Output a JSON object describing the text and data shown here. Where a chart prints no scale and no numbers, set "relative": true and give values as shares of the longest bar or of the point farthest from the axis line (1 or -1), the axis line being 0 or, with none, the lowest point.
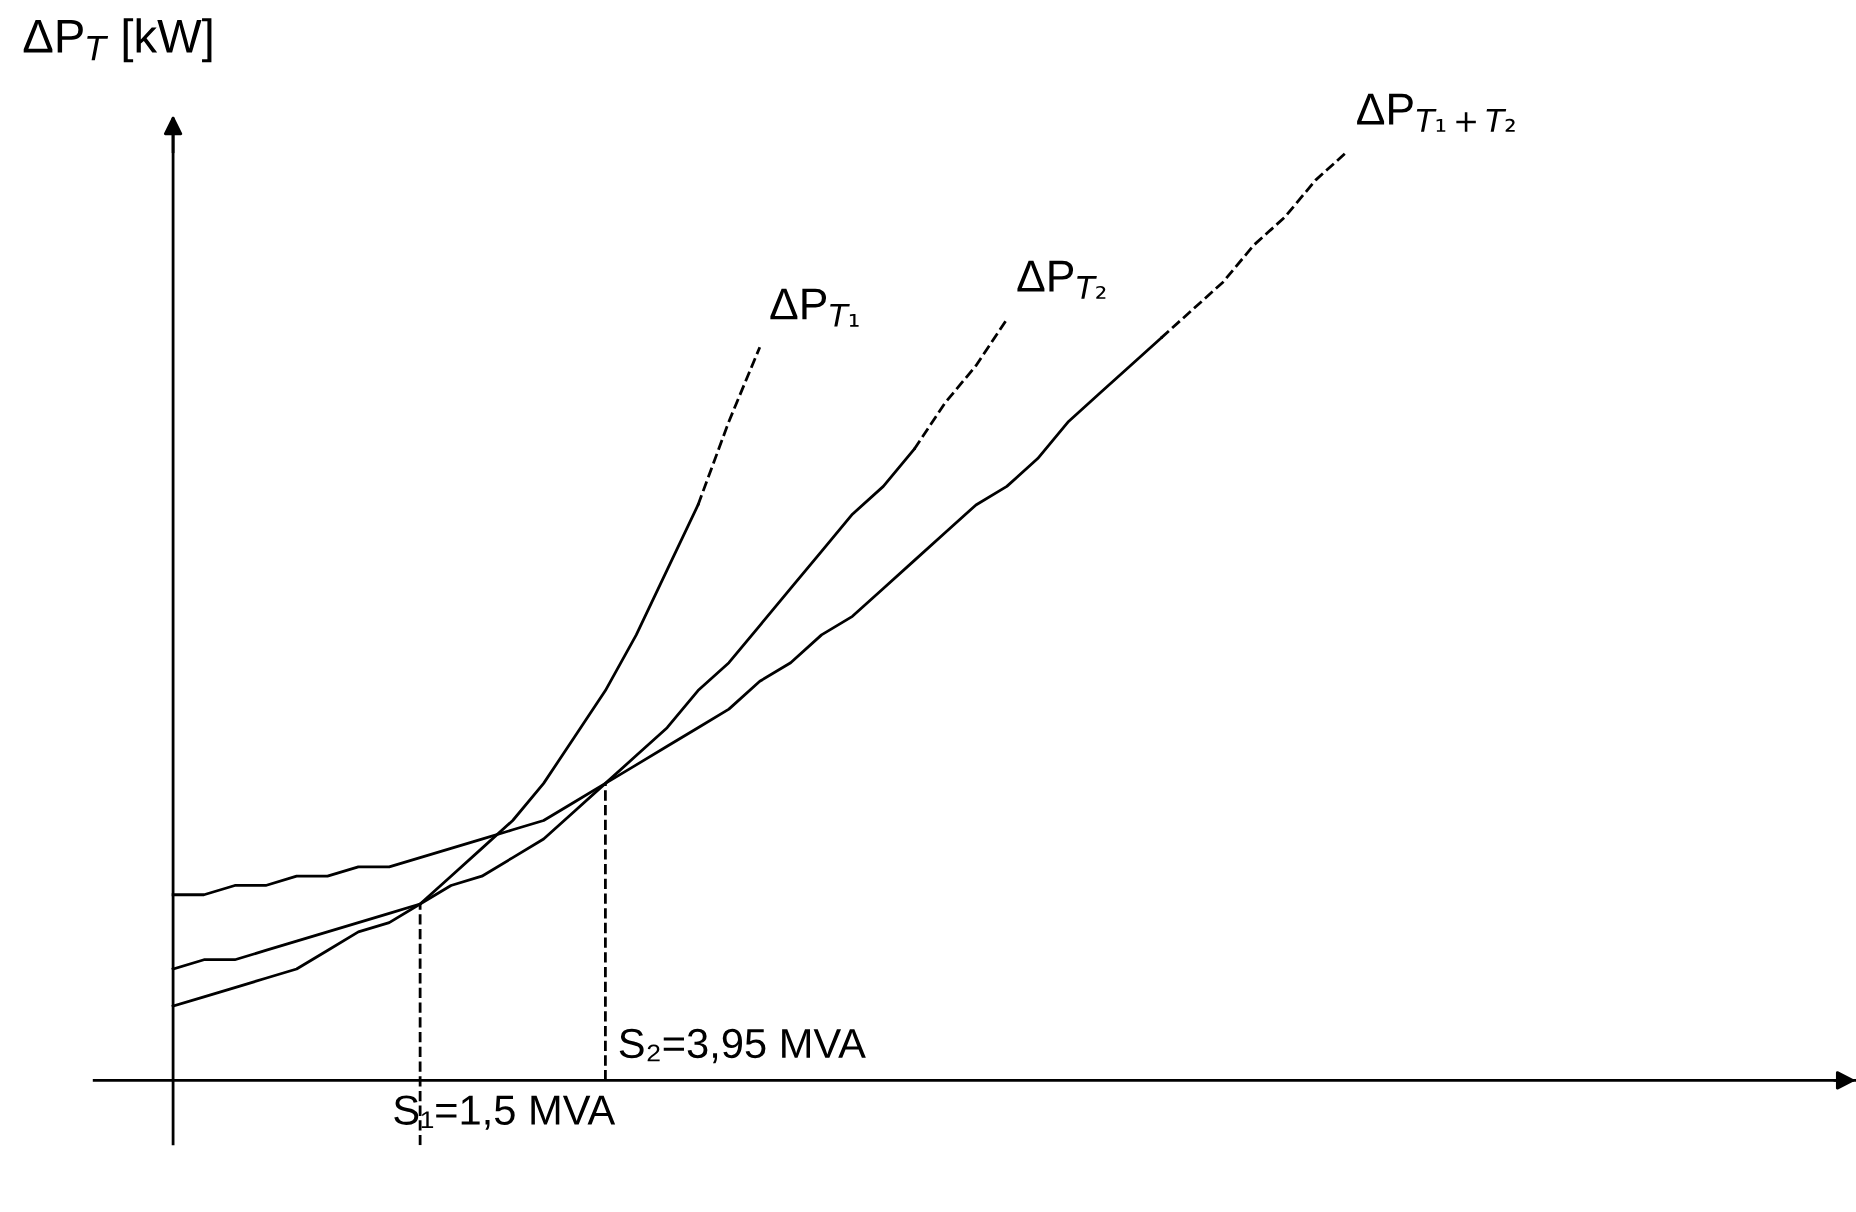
{
  "chart_data": {
    "type": "line",
    "relative": true,
    "ylabel": "ΔP$_{T}$ [kW]",
    "categories": [
      null,
      null,
      null,
      null,
      null,
      null,
      null,
      null,
      null,
      null,
      null,
      null,
      null,
      null,
      null,
      null,
      null,
      null,
      null,
      null,
      null,
      null,
      null,
      null,
      null,
      null,
      null,
      null,
      null,
      null,
      null,
      null,
      null,
      null,
      null,
      null,
      null,
      null,
      null,
      null,
      null,
      null,
      null,
      null,
      null,
      null,
      null,
      null,
      null,
      null,
      null,
      null,
      null,
      null,
      null
    ],
    "series": [
      {
        "color": "#000000",
        "line_style": "solid",
        "values": [
          0.08,
          0.09,
          0.1,
          0.11,
          0.12,
          0.14,
          0.16,
          0.17,
          0.19,
          0.22,
          0.25,
          0.28,
          0.32,
          0.37,
          0.42,
          0.48,
          0.55,
          0.62,
          null,
          null,
          null,
          null,
          null,
          null,
          null,
          null,
          null,
          null,
          null,
          null,
          null,
          null,
          null,
          null,
          null,
          null,
          null,
          null,
          null,
          null,
          null,
          null,
          null,
          null,
          null,
          null,
          null,
          null,
          null,
          null,
          null,
          null,
          null,
          null,
          null
        ]
      },
      {
        "name": "ΔP$_{T₁}$",
        "color": "#000000",
        "line_style": "dashed",
        "values": [
          null,
          null,
          null,
          null,
          null,
          null,
          null,
          null,
          null,
          null,
          null,
          null,
          null,
          null,
          null,
          null,
          null,
          0.62,
          0.71,
          0.79,
          null,
          null,
          null,
          null,
          null,
          null,
          null,
          null,
          null,
          null,
          null,
          null,
          null,
          null,
          null,
          null,
          null,
          null,
          null,
          null,
          null,
          null,
          null,
          null,
          null,
          null,
          null,
          null,
          null,
          null,
          null,
          null,
          null,
          null,
          null
        ]
      },
      {
        "color": "#000000",
        "line_style": "solid",
        "values": [
          0.12,
          0.13,
          0.13,
          0.14,
          0.15,
          0.16,
          0.17,
          0.18,
          0.19,
          0.21,
          0.22,
          0.24,
          0.26,
          0.29,
          0.32,
          0.35,
          0.38,
          0.42,
          0.45,
          0.49,
          0.53,
          0.57,
          0.61,
          0.64,
          0.68,
          null,
          null,
          null,
          null,
          null,
          null,
          null,
          null,
          null,
          null,
          null,
          null,
          null,
          null,
          null,
          null,
          null,
          null,
          null,
          null,
          null,
          null,
          null,
          null,
          null,
          null,
          null,
          null,
          null,
          null
        ]
      },
      {
        "name": "ΔP$_{T₂}$",
        "color": "#000000",
        "line_style": "dashed",
        "values": [
          null,
          null,
          null,
          null,
          null,
          null,
          null,
          null,
          null,
          null,
          null,
          null,
          null,
          null,
          null,
          null,
          null,
          null,
          null,
          null,
          null,
          null,
          null,
          null,
          0.68,
          0.73,
          0.77,
          0.82,
          null,
          null,
          null,
          null,
          null,
          null,
          null,
          null,
          null,
          null,
          null,
          null,
          null,
          null,
          null,
          null,
          null,
          null,
          null,
          null,
          null,
          null,
          null,
          null,
          null,
          null,
          null
        ]
      },
      {
        "color": "#000000",
        "line_style": "solid",
        "values": [
          0.2,
          0.2,
          0.21,
          0.21,
          0.22,
          0.22,
          0.23,
          0.23,
          0.24,
          0.25,
          0.26,
          0.27,
          0.28,
          0.3,
          0.32,
          0.34,
          0.36,
          0.38,
          0.4,
          0.43,
          0.45,
          0.48,
          0.5,
          0.53,
          0.56,
          0.59,
          0.62,
          0.64,
          0.67,
          0.71,
          0.74,
          0.77,
          0.8,
          null,
          null,
          null,
          null,
          null,
          null,
          null,
          null,
          null,
          null,
          null,
          null,
          null,
          null,
          null,
          null,
          null,
          null,
          null,
          null,
          null,
          null
        ]
      },
      {
        "name": "ΔP$_{T₁+T₂}$",
        "color": "#000000",
        "line_style": "dashed",
        "values": [
          null,
          null,
          null,
          null,
          null,
          null,
          null,
          null,
          null,
          null,
          null,
          null,
          null,
          null,
          null,
          null,
          null,
          null,
          null,
          null,
          null,
          null,
          null,
          null,
          null,
          null,
          null,
          null,
          null,
          null,
          null,
          null,
          0.8,
          0.83,
          0.86,
          0.9,
          0.93,
          0.97,
          1.0,
          null,
          null,
          null,
          null,
          null,
          null,
          null,
          null,
          null,
          null,
          null,
          null,
          null,
          null,
          null,
          null
        ]
      }
    ],
    "annotations": [
      "S₁=1,5 MVA",
      "S₂=3,95 MVA"
    ],
    "legend": false,
    "marker": "none"
  }
}
